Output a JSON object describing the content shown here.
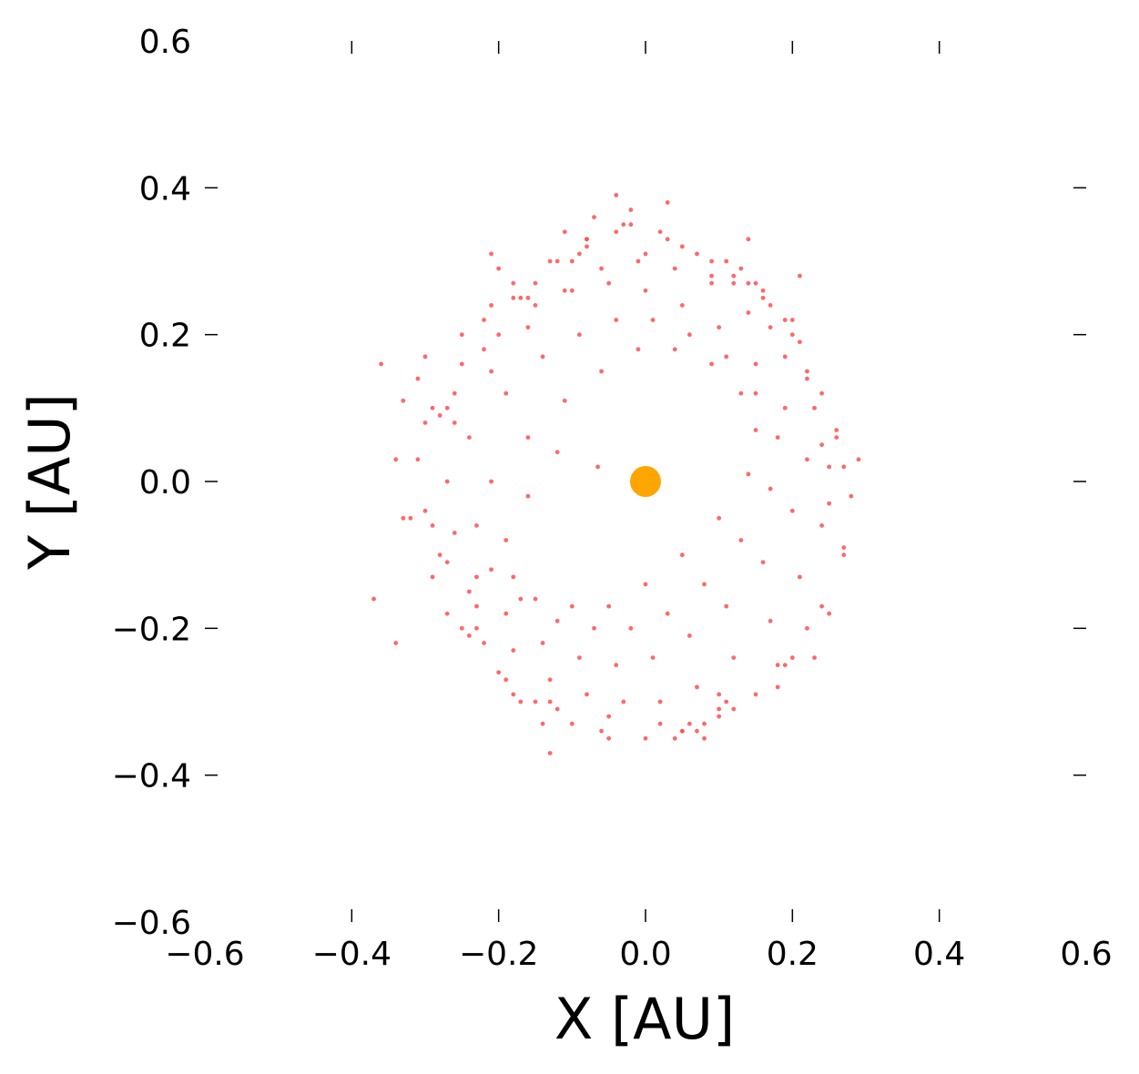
{
  "chart_data": {
    "type": "scatter",
    "title": "",
    "xlabel": "X [AU]",
    "ylabel": "Y [AU]",
    "xlim": [
      -0.6,
      0.6
    ],
    "ylim": [
      -0.6,
      0.6
    ],
    "grid": false,
    "x_ticks": [
      -0.6,
      -0.4,
      -0.2,
      0.0,
      0.2,
      0.4,
      0.6
    ],
    "y_ticks": [
      -0.6,
      -0.4,
      -0.2,
      0.0,
      0.2,
      0.4,
      0.6
    ],
    "x_tick_labels": [
      "−0.6",
      "−0.4",
      "−0.2",
      "0.0",
      "0.2",
      "0.4",
      "0.6"
    ],
    "y_tick_labels": [
      "−0.6",
      "−0.4",
      "−0.2",
      "0.0",
      "0.2",
      "0.4",
      "0.6"
    ],
    "colors": {
      "particles": "#ff4d4d",
      "star": "#ffa500"
    },
    "series": [
      {
        "role": "particles",
        "x": [
          -0.27,
          -0.22,
          -0.18,
          -0.13,
          -0.08,
          -0.03,
          0.02,
          0.07,
          0.12,
          0.17,
          0.22,
          0.26,
          0.28,
          0.27,
          0.24,
          0.2,
          0.15,
          0.1,
          0.05,
          0.0,
          -0.05,
          -0.1,
          -0.15,
          -0.2,
          -0.25,
          -0.29,
          -0.32,
          -0.34,
          -0.33,
          -0.3,
          -0.26,
          -0.21,
          -0.16,
          -0.11,
          -0.06,
          -0.01,
          0.04,
          0.09,
          0.14,
          0.19,
          0.23,
          0.25,
          0.24,
          0.21,
          0.17,
          0.12,
          0.07,
          0.02,
          -0.03,
          -0.08,
          -0.13,
          -0.18,
          -0.23,
          -0.27,
          -0.3,
          -0.31,
          -0.29,
          -0.25,
          -0.2,
          -0.15,
          -0.1,
          -0.05,
          0.0,
          0.05,
          0.1,
          0.15,
          0.19,
          0.22,
          0.2,
          0.16,
          0.11,
          0.06,
          0.01,
          -0.04,
          -0.09,
          -0.14,
          -0.19,
          -0.23,
          -0.26,
          -0.27,
          -0.24,
          -0.19,
          -0.14,
          -0.09,
          -0.04,
          0.01,
          0.06,
          0.11,
          0.15,
          0.18,
          0.17,
          0.13,
          0.08,
          0.03,
          -0.02,
          -0.07,
          -0.12,
          -0.17,
          -0.21,
          -0.23,
          -0.21,
          -0.16,
          -0.11,
          -0.06,
          -0.01,
          0.04,
          0.09,
          0.13,
          0.15,
          0.14,
          0.1,
          0.05,
          0.0,
          -0.05,
          -0.1,
          -0.15,
          -0.18,
          -0.19,
          -0.16,
          -0.12,
          -0.36,
          -0.37,
          -0.34,
          0.29,
          0.27,
          0.25,
          -0.04,
          0.03,
          -0.13,
          0.08,
          0.21,
          -0.28,
          0.14,
          -0.21,
          0.23,
          -0.31,
          0.18,
          -0.07,
          0.11,
          -0.17,
          0.26,
          -0.24,
          0.06,
          -0.02,
          0.2,
          -0.33,
          0.09,
          -0.11,
          0.16,
          -0.2,
          0.24,
          -0.27,
          0.12,
          -0.06,
          0.0,
          -0.15,
          0.19,
          -0.25,
          0.07,
          -0.09,
          0.22,
          -0.3,
          0.13,
          -0.18,
          0.03,
          -0.12,
          0.17,
          -0.23,
          0.1,
          -0.04,
          0.25,
          -0.29,
          0.05,
          -0.14,
          0.21,
          -0.22,
          0.08,
          -0.08,
          0.15,
          -0.19,
          -0.065,
          0.27,
          -0.26,
          0.18,
          -0.16,
          0.02,
          0.12,
          -0.1,
          0.22,
          -0.24,
          0.09,
          -0.13,
          0.19,
          -0.21,
          0.05,
          -0.05,
          0.14,
          -0.17,
          0.24,
          -0.28,
          0.1,
          -0.08,
          0.2,
          -0.22,
          0.04,
          -0.02,
          0.16,
          -0.18,
          0.11,
          -0.12
        ],
        "y": [
          0.1,
          0.18,
          0.25,
          0.3,
          0.33,
          0.35,
          0.34,
          0.31,
          0.27,
          0.21,
          0.14,
          0.06,
          -0.02,
          -0.1,
          -0.17,
          -0.24,
          -0.29,
          -0.32,
          -0.34,
          -0.35,
          -0.35,
          -0.33,
          -0.3,
          -0.26,
          -0.2,
          -0.13,
          -0.05,
          0.03,
          0.11,
          0.17,
          0.08,
          0.15,
          0.21,
          0.26,
          0.29,
          0.3,
          0.29,
          0.27,
          0.23,
          0.17,
          0.1,
          0.02,
          -0.06,
          -0.13,
          -0.19,
          -0.24,
          -0.28,
          -0.3,
          -0.3,
          -0.29,
          -0.27,
          -0.23,
          -0.17,
          -0.11,
          -0.04,
          0.03,
          0.1,
          0.16,
          0.2,
          0.24,
          0.26,
          0.27,
          0.26,
          0.24,
          0.21,
          0.16,
          0.1,
          0.03,
          -0.04,
          -0.11,
          -0.17,
          -0.21,
          -0.24,
          -0.25,
          -0.24,
          -0.22,
          -0.18,
          -0.13,
          -0.07,
          0.0,
          0.06,
          0.12,
          0.17,
          0.2,
          0.22,
          0.22,
          0.2,
          0.17,
          0.12,
          0.06,
          -0.01,
          -0.08,
          -0.14,
          -0.18,
          -0.2,
          -0.2,
          -0.19,
          -0.16,
          -0.12,
          -0.06,
          0.0,
          0.06,
          0.11,
          0.15,
          0.18,
          0.18,
          0.16,
          0.12,
          0.07,
          0.01,
          -0.05,
          -0.1,
          -0.14,
          -0.17,
          -0.17,
          -0.16,
          -0.13,
          -0.08,
          -0.02,
          0.04,
          0.16,
          -0.16,
          -0.22,
          0.03,
          -0.09,
          -0.18,
          0.39,
          0.38,
          -0.37,
          -0.35,
          0.28,
          -0.1,
          0.33,
          0.31,
          -0.24,
          0.14,
          -0.28,
          0.36,
          0.3,
          -0.3,
          0.07,
          -0.21,
          -0.33,
          0.37,
          0.2,
          -0.05,
          0.3,
          0.34,
          0.26,
          0.29,
          0.12,
          -0.18,
          -0.31,
          -0.34,
          0.31,
          0.27,
          -0.25,
          0.2,
          -0.34,
          0.31,
          0.15,
          0.08,
          0.29,
          -0.29,
          0.33,
          -0.31,
          0.24,
          -0.2,
          -0.31,
          0.34,
          -0.03,
          -0.06,
          0.32,
          -0.33,
          0.19,
          0.22,
          -0.33,
          0.32,
          0.27,
          -0.27,
          0.02,
          0.02,
          0.12,
          -0.25,
          0.25,
          -0.33,
          0.28,
          0.3,
          -0.2,
          -0.15,
          0.28,
          -0.3,
          0.22,
          0.24,
          -0.34,
          -0.32,
          0.27,
          0.25,
          0.05,
          0.09,
          -0.29,
          0.33,
          0.22,
          -0.22,
          -0.35,
          0.35,
          0.25,
          0.27,
          -0.3,
          0.3
        ]
      },
      {
        "role": "star",
        "x": [
          0.0
        ],
        "y": [
          0.0
        ]
      }
    ]
  }
}
